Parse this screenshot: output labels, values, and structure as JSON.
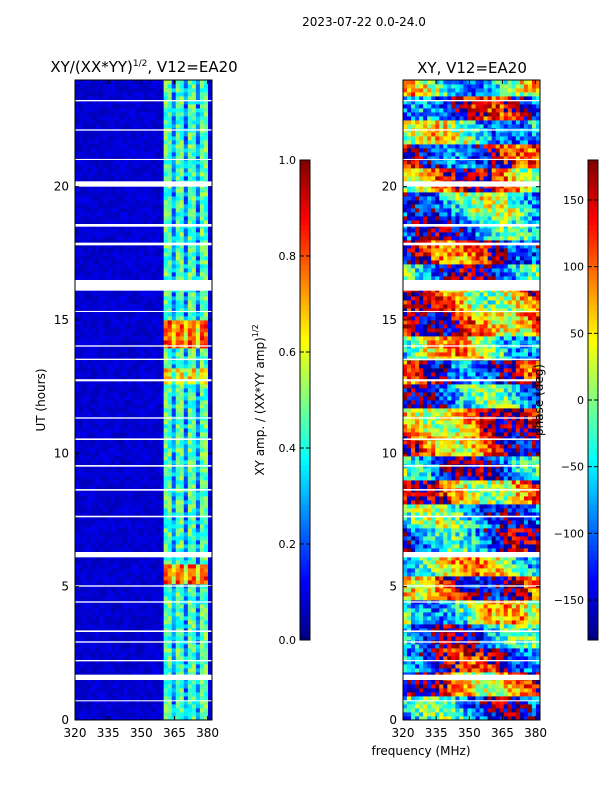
{
  "suptitle": "2023-07-22 0.0-24.0",
  "colors": {
    "jet": [
      "#00007f",
      "#0000ff",
      "#0080ff",
      "#00ffff",
      "#80ff80",
      "#ffff00",
      "#ff8000",
      "#ff0000",
      "#7f0000"
    ],
    "gap": "#ffffff"
  },
  "chart_data": [
    {
      "type": "heatmap",
      "title": "XY/(XX*YY)^1/2, V12=EA20",
      "title_main": "XY/(XX*YY)",
      "title_exp": "1/2",
      "title_tail": ", V12=EA20",
      "xlabel": "",
      "ylabel": "UT (hours)",
      "xlim": [
        320,
        382
      ],
      "ylim": [
        0,
        24
      ],
      "xticks": [
        320,
        335,
        350,
        365,
        380
      ],
      "yticks": [
        0,
        5,
        10,
        15,
        20
      ],
      "colorbar": {
        "label": "XY amp. / (XX*YY amp)^1/2",
        "label_main": "XY amp. / (XX*YY amp)",
        "label_exp": "1/2",
        "range": [
          0.0,
          1.0
        ],
        "ticks": [
          "0.0",
          "0.2",
          "0.4",
          "0.6",
          "0.8",
          "1.0"
        ]
      },
      "bright_freq_band_MHz": [
        360,
        380
      ],
      "notes": "Mostly low amplitude (~0.0-0.1); vertical stripes 0.3-0.6 between ~360 and ~380 MHz; peaks ~0.8 near 14.5 h and 5.5 h; white rows are flagged gaps."
    },
    {
      "type": "heatmap",
      "title": "XY, V12=EA20",
      "xlabel": "frequency (MHz)",
      "ylabel": "",
      "xlim": [
        320,
        382
      ],
      "ylim": [
        0,
        24
      ],
      "xticks": [
        320,
        335,
        350,
        365,
        380
      ],
      "yticks": [
        0,
        5,
        10,
        15,
        20
      ],
      "colorbar": {
        "label": "phase (deg)",
        "range": [
          -180,
          180
        ],
        "ticks": [
          "−150",
          "−100",
          "−50",
          "0",
          "50",
          "100",
          "150"
        ]
      },
      "notes": "Phase varies across full -180 to 180 deg range with banded structure in time; white rows are flagged gaps."
    }
  ],
  "gaps_hours": [
    [
      16.1,
      16.5
    ],
    [
      6.1,
      6.3
    ],
    [
      1.5,
      1.7
    ],
    [
      20.0,
      20.2
    ],
    [
      18.5,
      18.6
    ],
    [
      17.8,
      17.9
    ],
    [
      12.7,
      12.78
    ],
    [
      10.5,
      10.56
    ],
    [
      9.5,
      9.56
    ],
    [
      8.6,
      8.66
    ],
    [
      7.6,
      7.66
    ],
    [
      5.0,
      5.05
    ],
    [
      3.3,
      3.36
    ],
    [
      2.9,
      2.95
    ],
    [
      2.2,
      2.25
    ],
    [
      0.7,
      0.74
    ],
    [
      22.1,
      22.15
    ],
    [
      21.0,
      21.04
    ],
    [
      23.2,
      23.25
    ],
    [
      15.3,
      15.34
    ],
    [
      14.0,
      14.05
    ],
    [
      11.3,
      11.35
    ],
    [
      13.5,
      13.55
    ],
    [
      4.4,
      4.45
    ]
  ]
}
